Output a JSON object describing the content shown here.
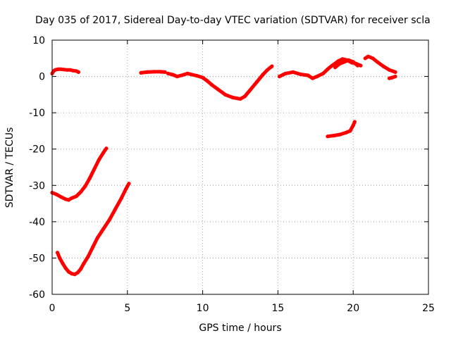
{
  "chart_data": {
    "type": "line",
    "title": "Day 035 of 2017, Sidereal Day-to-day VTEC variation (SDTVAR) for receiver scla",
    "xlabel": "GPS time / hours",
    "ylabel": "SDTVAR / TECUs",
    "xlim": [
      0,
      25
    ],
    "ylim": [
      -60,
      10
    ],
    "xticks": [
      0,
      5,
      10,
      15,
      20,
      25
    ],
    "yticks": [
      10,
      0,
      -10,
      -20,
      -30,
      -40,
      -50,
      -60
    ],
    "grid": true,
    "color": "#ff0000",
    "series": [
      {
        "x": [
          0.0,
          0.1,
          0.2,
          0.4,
          0.6,
          0.8,
          1.0,
          1.2,
          1.4,
          1.6,
          1.75
        ],
        "y": [
          0.8,
          1.5,
          1.8,
          2.0,
          2.0,
          1.9,
          1.8,
          1.8,
          1.6,
          1.5,
          1.2
        ]
      },
      {
        "x": [
          5.9,
          6.3,
          6.8,
          7.2,
          7.5
        ],
        "y": [
          1.0,
          1.2,
          1.3,
          1.3,
          1.2
        ]
      },
      {
        "x": [
          7.7,
          8.0,
          8.3,
          8.6,
          9.0,
          9.3,
          9.6,
          10.0,
          10.3,
          10.6,
          11.0,
          11.5,
          12.0,
          12.5,
          12.8,
          13.2,
          13.6,
          14.0,
          14.3,
          14.6
        ],
        "y": [
          0.8,
          0.5,
          0.0,
          0.3,
          0.8,
          0.5,
          0.2,
          -0.3,
          -1.2,
          -2.3,
          -3.5,
          -5.0,
          -5.8,
          -6.2,
          -5.5,
          -3.5,
          -1.5,
          0.5,
          1.8,
          2.8
        ]
      },
      {
        "x": [
          15.1,
          15.5,
          16.0,
          16.5,
          17.0,
          17.3,
          17.6,
          18.0,
          18.3,
          18.6,
          19.0,
          19.3,
          19.6,
          19.9,
          20.2,
          20.5
        ],
        "y": [
          0.0,
          0.8,
          1.2,
          0.6,
          0.3,
          -0.5,
          0.0,
          0.8,
          2.0,
          3.0,
          4.2,
          4.8,
          4.5,
          3.8,
          3.5,
          3.0
        ]
      },
      {
        "x": [
          18.8,
          19.1,
          19.4,
          19.7,
          20.0,
          20.3
        ],
        "y": [
          2.5,
          3.5,
          4.0,
          4.5,
          4.0,
          3.0
        ]
      },
      {
        "x": [
          20.8,
          21.0,
          21.3,
          21.6,
          22.0,
          22.4,
          22.8
        ],
        "y": [
          5.0,
          5.5,
          5.0,
          4.0,
          2.8,
          1.8,
          1.2
        ]
      },
      {
        "x": [
          22.4,
          22.6,
          22.8
        ],
        "y": [
          -0.5,
          -0.3,
          0.0
        ]
      },
      {
        "x": [
          18.3,
          18.7,
          19.1,
          19.5,
          19.8,
          20.0,
          20.1
        ],
        "y": [
          -16.5,
          -16.3,
          -16.0,
          -15.5,
          -15.0,
          -13.5,
          -12.5
        ]
      },
      {
        "x": [
          0.0,
          0.3,
          0.6,
          0.9,
          1.1,
          1.3,
          1.6,
          1.9,
          2.2,
          2.5,
          2.8,
          3.1,
          3.4,
          3.6
        ],
        "y": [
          -32.0,
          -32.5,
          -33.2,
          -33.8,
          -34.0,
          -33.5,
          -33.0,
          -31.8,
          -30.2,
          -28.0,
          -25.5,
          -23.0,
          -21.0,
          -19.8
        ]
      },
      {
        "x": [
          0.35,
          0.5,
          0.7,
          0.9,
          1.1,
          1.3,
          1.5,
          1.7,
          1.9,
          2.1,
          2.4,
          2.7,
          3.0,
          3.4,
          3.8,
          4.2,
          4.6,
          4.9,
          5.1
        ],
        "y": [
          -48.5,
          -50.0,
          -51.5,
          -52.8,
          -53.8,
          -54.3,
          -54.5,
          -54.0,
          -53.0,
          -51.5,
          -49.5,
          -47.0,
          -44.5,
          -42.0,
          -39.5,
          -36.5,
          -33.5,
          -31.0,
          -29.5
        ]
      }
    ]
  }
}
